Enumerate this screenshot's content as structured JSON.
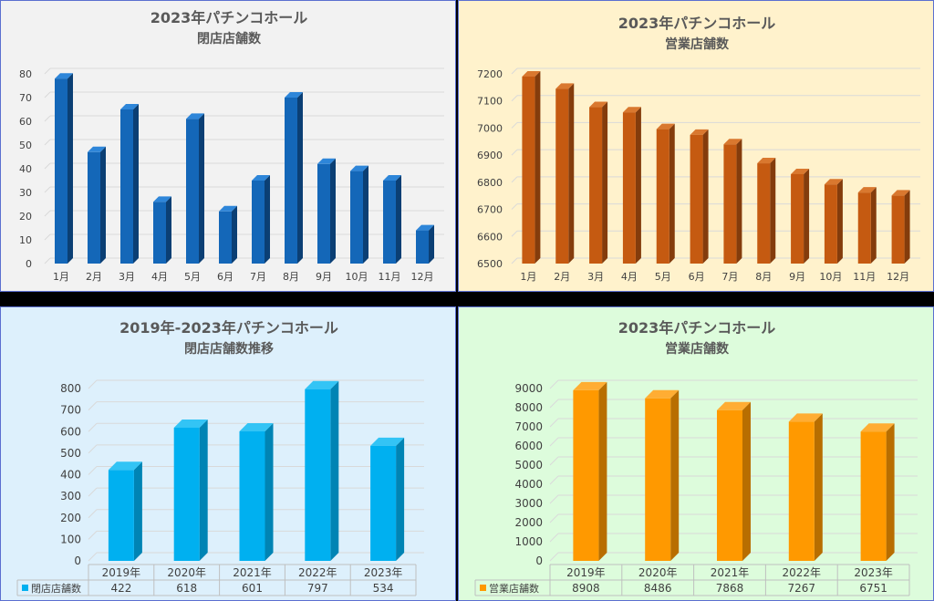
{
  "chart_data": [
    {
      "type": "bar",
      "title": "2023年パチンコホール",
      "subtitle": "閉店店舗数",
      "categories": [
        "1月",
        "2月",
        "3月",
        "4月",
        "5月",
        "6月",
        "7月",
        "8月",
        "9月",
        "10月",
        "11月",
        "12月"
      ],
      "values": [
        78,
        47,
        65,
        26,
        61,
        22,
        35,
        70,
        42,
        39,
        35,
        14
      ],
      "ylim": [
        0,
        80
      ],
      "yticks": [
        0,
        10,
        20,
        30,
        40,
        50,
        60,
        70,
        80
      ],
      "grid": true,
      "colors": {
        "front": "#1467b8",
        "side": "#0b3f74",
        "top": "#2e86d9",
        "background": "#f2f2f2"
      }
    },
    {
      "type": "bar",
      "title": "2023年パチンコホール",
      "subtitle": "営業店舗数",
      "categories": [
        "1月",
        "2月",
        "3月",
        "4月",
        "5月",
        "6月",
        "7月",
        "8月",
        "9月",
        "10月",
        "11月",
        "12月"
      ],
      "values": [
        7190,
        7145,
        7077,
        7058,
        6996,
        6975,
        6940,
        6870,
        6830,
        6792,
        6762,
        6751
      ],
      "ylim": [
        6500,
        7200
      ],
      "yticks": [
        6500,
        6600,
        6700,
        6800,
        6900,
        7000,
        7100,
        7200
      ],
      "grid": true,
      "colors": {
        "front": "#c55a11",
        "side": "#843c0c",
        "top": "#d9782f",
        "background": "#fff2cc"
      }
    },
    {
      "type": "bar",
      "title": "2019年-2023年パチンコホール",
      "subtitle": "閉店店舗数推移",
      "categories": [
        "2019年",
        "2020年",
        "2021年",
        "2022年",
        "2023年"
      ],
      "series": [
        {
          "name": "閉店店舗数",
          "values": [
            422,
            618,
            601,
            797,
            534
          ]
        }
      ],
      "ylim": [
        0,
        800
      ],
      "yticks": [
        0,
        100,
        200,
        300,
        400,
        500,
        600,
        700,
        800
      ],
      "grid": true,
      "data_table": true,
      "colors": {
        "front": "#00b0f0",
        "side": "#0084b4",
        "top": "#33c4f5",
        "background": "#ddf0fc"
      }
    },
    {
      "type": "bar",
      "title": "2023年パチンコホール",
      "subtitle": "営業店舗数",
      "categories": [
        "2019年",
        "2020年",
        "2021年",
        "2022年",
        "2023年"
      ],
      "series": [
        {
          "name": "営業店舗数",
          "values": [
            8908,
            8486,
            7868,
            7267,
            6751
          ]
        }
      ],
      "ylim": [
        0,
        9000
      ],
      "yticks": [
        0,
        1000,
        2000,
        3000,
        4000,
        5000,
        6000,
        7000,
        8000,
        9000
      ],
      "grid": true,
      "data_table": true,
      "colors": {
        "front": "#ff9900",
        "side": "#b86e00",
        "top": "#ffad33",
        "background": "#ddfcdc"
      }
    }
  ]
}
